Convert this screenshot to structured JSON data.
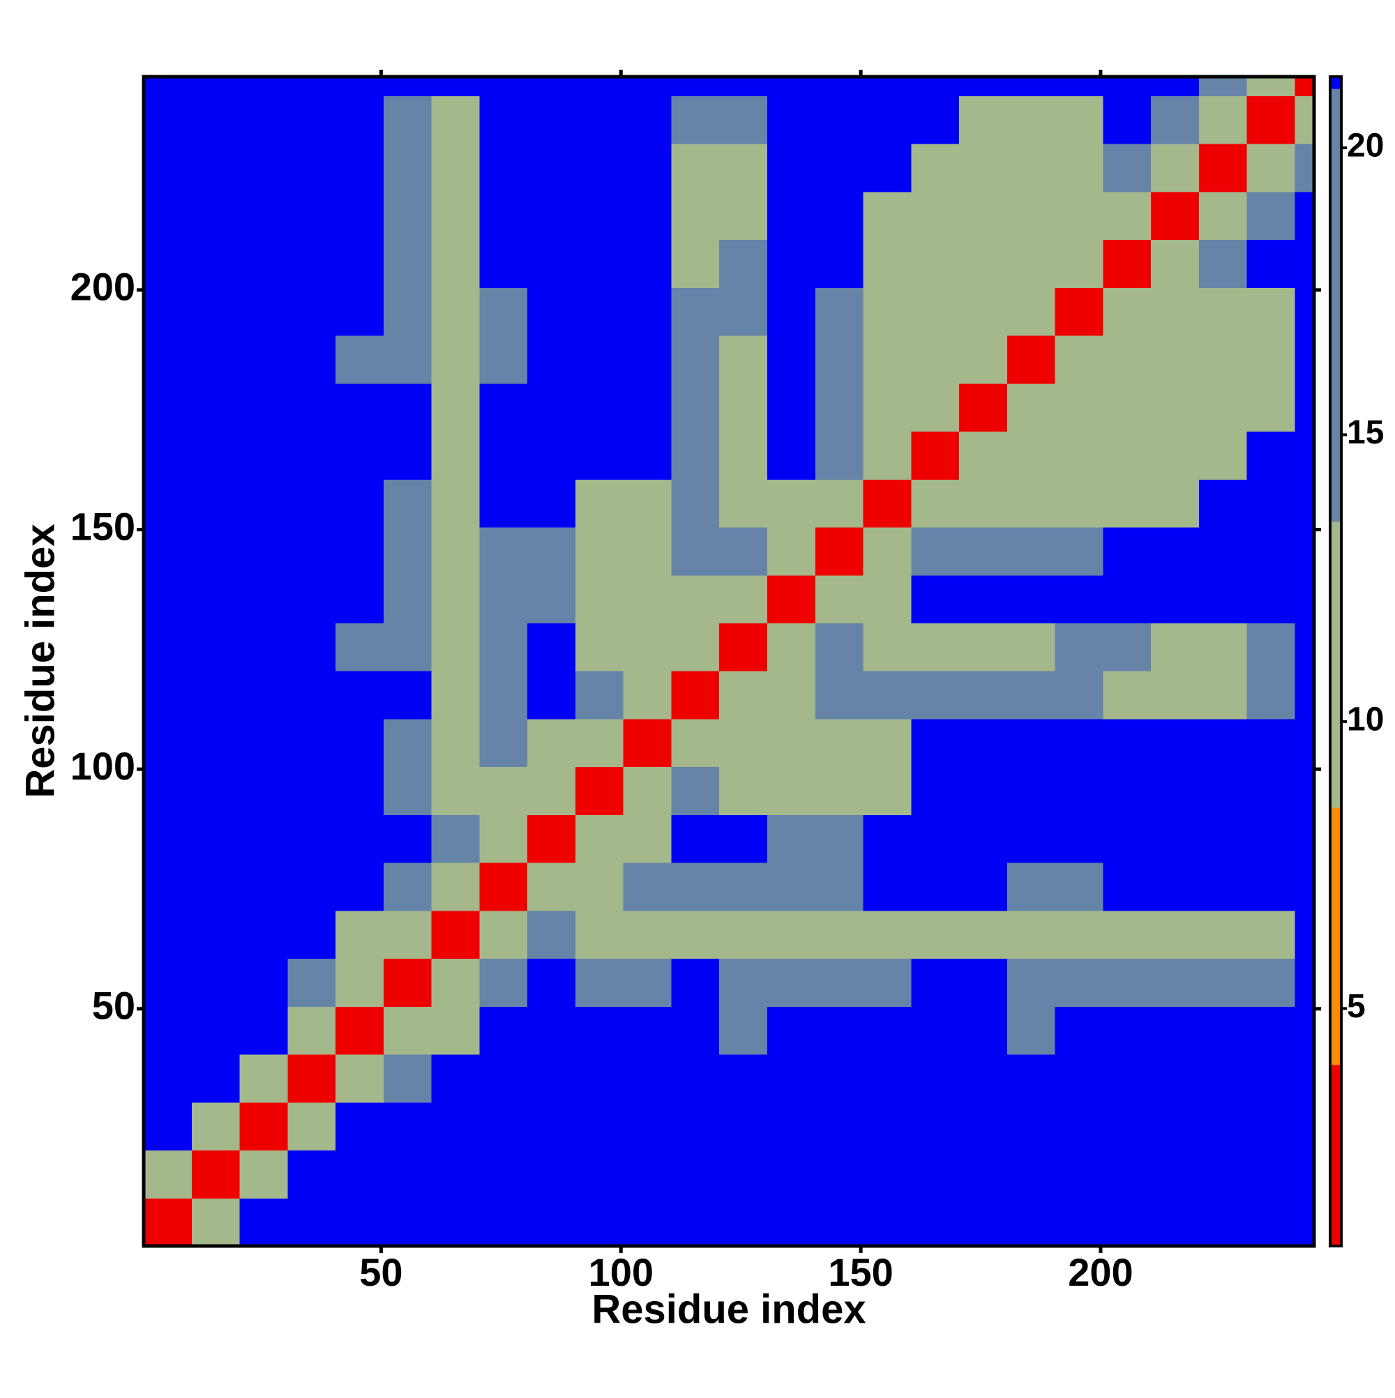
{
  "chart_data": {
    "type": "heatmap",
    "x_label": "Residue index",
    "y_label": "Residue index",
    "xlim": [
      0.5,
      244.5
    ],
    "ylim": [
      0.5,
      244.5
    ],
    "xticks": [
      50,
      100,
      150,
      200
    ],
    "yticks": [
      50,
      100,
      150,
      200
    ],
    "x_bins": [
      0.5,
      10.5,
      20.5,
      30.5,
      40.5,
      50.5,
      60.5,
      70.5,
      80.5,
      90.5,
      100.5,
      110.5,
      120.5,
      130.5,
      140.5,
      150.5,
      160.5,
      170.5,
      180.5,
      190.5,
      200.5,
      210.5,
      220.5,
      230.5,
      240.5,
      244.5
    ],
    "y_bins": [
      0.5,
      10.5,
      20.5,
      30.5,
      40.5,
      50.5,
      60.5,
      70.5,
      80.5,
      90.5,
      100.5,
      110.5,
      120.5,
      130.5,
      140.5,
      150.5,
      160.5,
      170.5,
      180.5,
      190.5,
      200.5,
      210.5,
      220.5,
      230.5,
      240.5,
      244.5
    ],
    "zlim": [
      0.86,
      21.24
    ],
    "zticks": [
      5,
      10,
      15,
      20
    ],
    "colors": [
      "#ee0000",
      "#ff8c00",
      "#a4b88c",
      "#6683a8",
      "#0000f5"
    ],
    "color_breaks": [
      4,
      8.5,
      13.5,
      21
    ],
    "z": [
      [
        3,
        12,
        21,
        21,
        21,
        21,
        21,
        21,
        21,
        21,
        21,
        21,
        21,
        21,
        21,
        21,
        21,
        21,
        21,
        21,
        21,
        21,
        21,
        21,
        21
      ],
      [
        12,
        3,
        12,
        21,
        21,
        21,
        21,
        21,
        21,
        21,
        21,
        21,
        21,
        21,
        21,
        21,
        21,
        21,
        21,
        21,
        21,
        21,
        21,
        21,
        21
      ],
      [
        21,
        12,
        3,
        12,
        21,
        21,
        21,
        21,
        21,
        21,
        21,
        21,
        21,
        21,
        21,
        21,
        21,
        21,
        21,
        21,
        21,
        21,
        21,
        21,
        21
      ],
      [
        21,
        21,
        12,
        3,
        9,
        15,
        21,
        21,
        21,
        21,
        21,
        21,
        21,
        21,
        21,
        21,
        21,
        21,
        21,
        21,
        21,
        21,
        21,
        21,
        21
      ],
      [
        21,
        21,
        21,
        9,
        3,
        9,
        12,
        21,
        21,
        21,
        21,
        21,
        16,
        21,
        21,
        21,
        21,
        21,
        16,
        21,
        21,
        21,
        21,
        21,
        21
      ],
      [
        21,
        21,
        21,
        15,
        9,
        3,
        9,
        15,
        21,
        15,
        15,
        21,
        15,
        15,
        15,
        15,
        21,
        21,
        15,
        15,
        15,
        15,
        15,
        15,
        21
      ],
      [
        21,
        21,
        21,
        21,
        12,
        9,
        3,
        9,
        15,
        11,
        11,
        11,
        11,
        11,
        11,
        11,
        11,
        11,
        11,
        11,
        11,
        11,
        11,
        11,
        21
      ],
      [
        21,
        21,
        21,
        21,
        21,
        15,
        9,
        3,
        9,
        12,
        14,
        14,
        14,
        14,
        14,
        21,
        21,
        21,
        15,
        15,
        21,
        21,
        21,
        21,
        21
      ],
      [
        21,
        21,
        21,
        21,
        21,
        21,
        15,
        9,
        3,
        9,
        12,
        21,
        21,
        15,
        15,
        21,
        21,
        21,
        21,
        21,
        21,
        21,
        21,
        21,
        21
      ],
      [
        21,
        21,
        21,
        21,
        21,
        15,
        11,
        12,
        9,
        3,
        9,
        15,
        12,
        12,
        12,
        12,
        21,
        21,
        21,
        21,
        21,
        21,
        21,
        21,
        21
      ],
      [
        21,
        21,
        21,
        21,
        21,
        15,
        11,
        14,
        12,
        9,
        3,
        9,
        12,
        12,
        12,
        12,
        21,
        21,
        21,
        21,
        21,
        21,
        21,
        21,
        21
      ],
      [
        21,
        21,
        21,
        21,
        21,
        21,
        11,
        14,
        21,
        15,
        9,
        3,
        9,
        12,
        15,
        15,
        15,
        15,
        15,
        15,
        12,
        12,
        12,
        15,
        21
      ],
      [
        21,
        21,
        21,
        21,
        16,
        15,
        11,
        14,
        21,
        12,
        12,
        9,
        3,
        9,
        15,
        12,
        12,
        12,
        12,
        15,
        15,
        12,
        12,
        15,
        21
      ],
      [
        21,
        21,
        21,
        21,
        21,
        15,
        11,
        14,
        15,
        12,
        12,
        12,
        9,
        3,
        9,
        12,
        21,
        21,
        21,
        21,
        21,
        21,
        21,
        21,
        21
      ],
      [
        21,
        21,
        21,
        21,
        21,
        15,
        11,
        14,
        15,
        12,
        12,
        15,
        15,
        9,
        3,
        9,
        15,
        15,
        15,
        15,
        21,
        21,
        21,
        21,
        21
      ],
      [
        21,
        21,
        21,
        21,
        21,
        15,
        11,
        21,
        21,
        12,
        12,
        15,
        12,
        12,
        9,
        3,
        9,
        12,
        12,
        12,
        12,
        12,
        21,
        21,
        21
      ],
      [
        21,
        21,
        21,
        21,
        21,
        21,
        11,
        21,
        21,
        21,
        21,
        15,
        12,
        21,
        15,
        9,
        3,
        9,
        12,
        12,
        12,
        12,
        12,
        21,
        21
      ],
      [
        21,
        21,
        21,
        21,
        21,
        21,
        11,
        21,
        21,
        21,
        21,
        15,
        12,
        21,
        15,
        12,
        9,
        3,
        9,
        12,
        12,
        12,
        12,
        12,
        21
      ],
      [
        21,
        21,
        21,
        21,
        16,
        15,
        11,
        15,
        21,
        21,
        21,
        15,
        12,
        21,
        15,
        12,
        12,
        9,
        3,
        9,
        12,
        12,
        12,
        12,
        21
      ],
      [
        21,
        21,
        21,
        21,
        21,
        15,
        11,
        15,
        21,
        21,
        21,
        15,
        15,
        21,
        15,
        12,
        12,
        12,
        9,
        3,
        9,
        12,
        12,
        12,
        21
      ],
      [
        21,
        21,
        21,
        21,
        21,
        15,
        11,
        21,
        21,
        21,
        21,
        12,
        15,
        21,
        21,
        12,
        12,
        12,
        12,
        9,
        3,
        9,
        15,
        21,
        21
      ],
      [
        21,
        21,
        21,
        21,
        21,
        15,
        11,
        21,
        21,
        21,
        21,
        12,
        12,
        21,
        21,
        12,
        12,
        12,
        12,
        12,
        9,
        3,
        9,
        15,
        21
      ],
      [
        21,
        21,
        21,
        21,
        21,
        15,
        11,
        21,
        21,
        21,
        21,
        12,
        12,
        21,
        21,
        21,
        12,
        12,
        12,
        12,
        15,
        9,
        3,
        9,
        15
      ],
      [
        21,
        21,
        21,
        21,
        21,
        15,
        11,
        21,
        21,
        21,
        21,
        15,
        15,
        21,
        21,
        21,
        21,
        12,
        12,
        12,
        21,
        15,
        9,
        3,
        9
      ],
      [
        21,
        21,
        21,
        21,
        21,
        21,
        21,
        21,
        21,
        21,
        21,
        21,
        21,
        21,
        21,
        21,
        21,
        21,
        21,
        21,
        21,
        21,
        15,
        9,
        3
      ]
    ]
  }
}
